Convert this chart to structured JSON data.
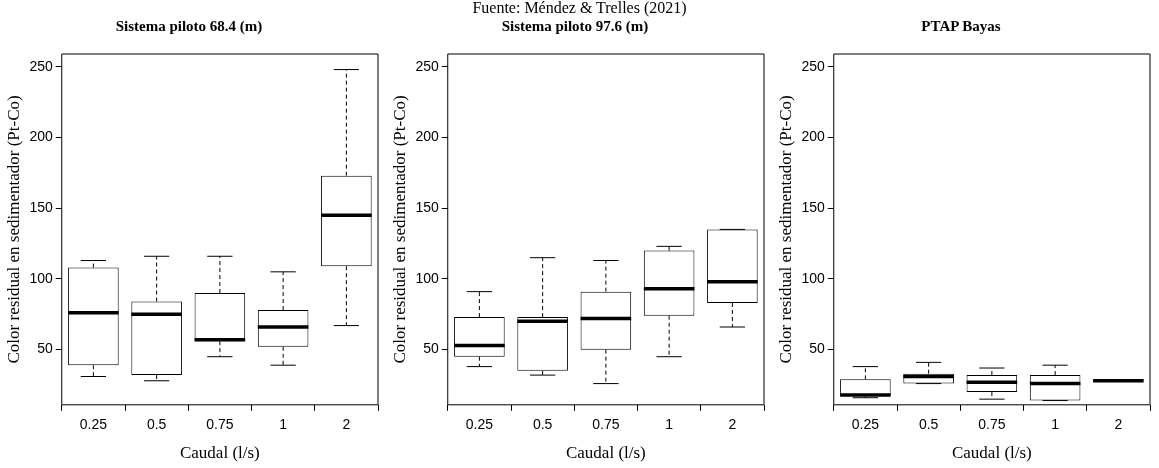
{
  "chart_data": [
    {
      "type": "box",
      "title": "Sistema piloto 68.4 (m)",
      "xlabel": "Caudal (l/s)",
      "ylabel": "Color residual en sedimentador (Pt-Co)",
      "categories": [
        "0.25",
        "0.5",
        "0.75",
        "1",
        "2"
      ],
      "boxes": [
        {
          "low": 31,
          "q1": 39,
          "median": 76,
          "q3": 108,
          "high": 113
        },
        {
          "low": 28,
          "q1": 32,
          "median": 75,
          "q3": 84,
          "high": 116
        },
        {
          "low": 45,
          "q1": 56,
          "median": 57,
          "q3": 90,
          "high": 116
        },
        {
          "low": 39,
          "q1": 52,
          "median": 66,
          "q3": 78,
          "high": 105
        },
        {
          "low": 67,
          "q1": 109,
          "median": 145,
          "q3": 173,
          "high": 248
        }
      ],
      "ylim": [
        11,
        259
      ],
      "yticks": [
        50,
        100,
        150,
        200,
        250
      ],
      "grid": false,
      "legend": false
    },
    {
      "type": "box",
      "title": "Sistema piloto 97.6 (m)",
      "xlabel": "Caudal (l/s)",
      "ylabel": "Color residual en sedimentador (Pt-Co)",
      "categories": [
        "0.25",
        "0.5",
        "0.75",
        "1",
        "2"
      ],
      "boxes": [
        {
          "low": 38,
          "q1": 45,
          "median": 53,
          "q3": 73,
          "high": 91
        },
        {
          "low": 32,
          "q1": 35,
          "median": 70,
          "q3": 73,
          "high": 115
        },
        {
          "low": 26,
          "q1": 50,
          "median": 72,
          "q3": 91,
          "high": 113
        },
        {
          "low": 45,
          "q1": 74,
          "median": 93,
          "q3": 120,
          "high": 123
        },
        {
          "low": 66,
          "q1": 83,
          "median": 98,
          "q3": 135,
          "high": 135
        }
      ],
      "ylim": [
        11,
        259
      ],
      "yticks": [
        50,
        100,
        150,
        200,
        250
      ],
      "grid": false,
      "legend": false,
      "annotations": [
        "Fuente: Méndez & Trelles (2021)"
      ]
    },
    {
      "type": "box",
      "title": "PTAP Bayas",
      "xlabel": "Caudal (l/s)",
      "ylabel": "Color residual en sedimentador (Pt-Co)",
      "categories": [
        "0.25",
        "0.5",
        "0.75",
        "1",
        "2"
      ],
      "boxes": [
        {
          "low": 16,
          "q1": 17.5,
          "median": 18,
          "q3": 29,
          "high": 38
        },
        {
          "low": 26,
          "q1": 26,
          "median": 31,
          "q3": 33,
          "high": 41
        },
        {
          "low": 15,
          "q1": 20,
          "median": 27,
          "q3": 32,
          "high": 37
        },
        {
          "low": 14,
          "q1": 14,
          "median": 26,
          "q3": 32,
          "high": 39
        },
        {
          "low": 28,
          "q1": 28,
          "median": 28,
          "q3": 28,
          "high": 28
        }
      ],
      "ylim": [
        11,
        259
      ],
      "yticks": [
        50,
        100,
        150,
        200,
        250
      ],
      "grid": false,
      "legend": false
    }
  ]
}
